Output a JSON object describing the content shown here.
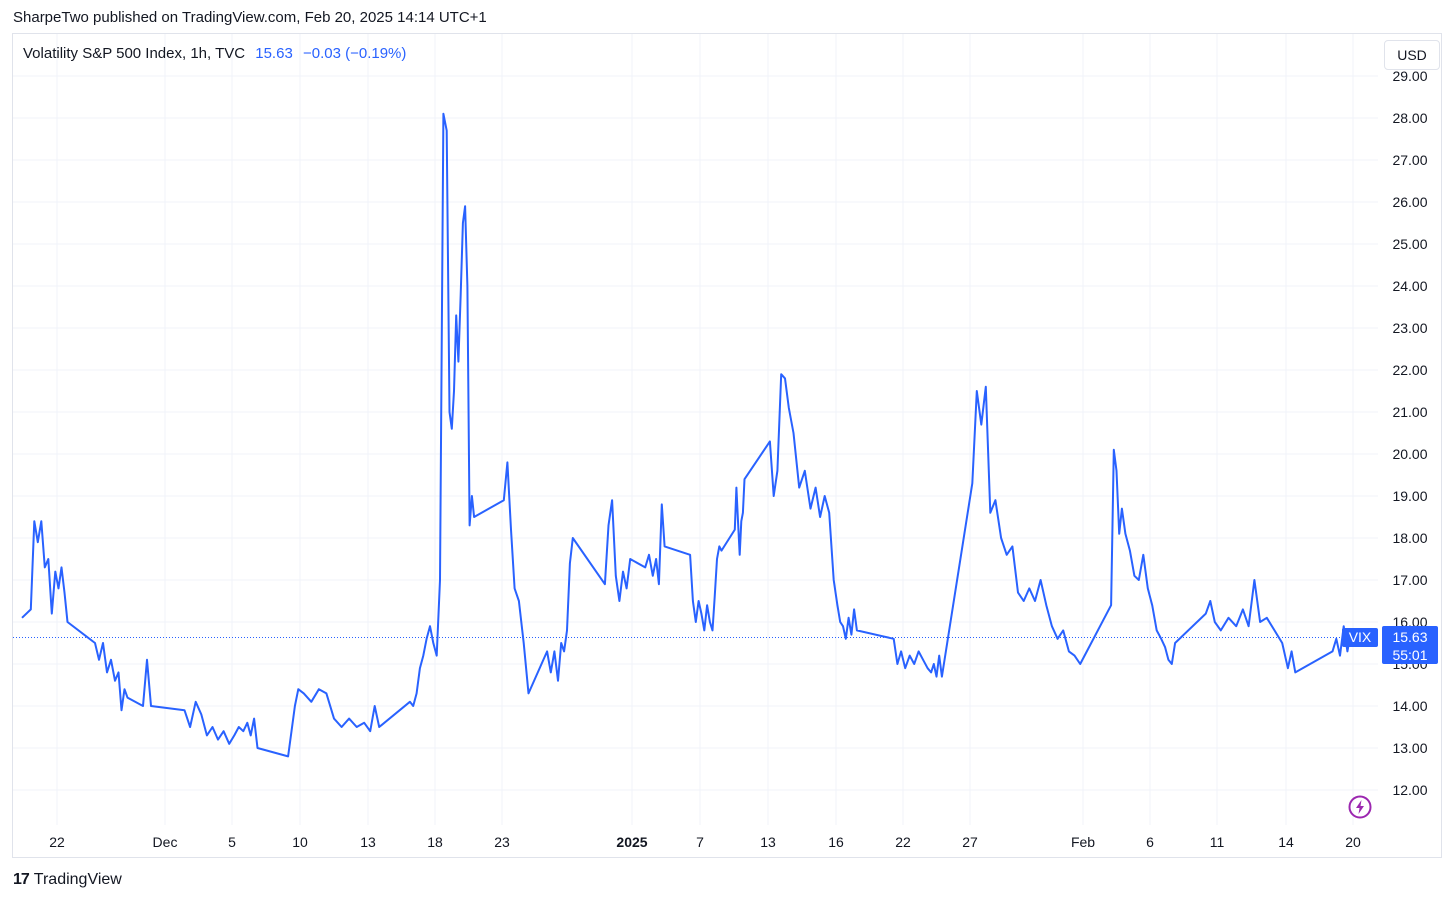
{
  "header": {
    "published_by": "SharpeTwo published on TradingView.com, Feb 20, 2025 14:14 UTC+1"
  },
  "legend": {
    "symbol": "Volatility S&P 500 Index, 1h, TVC",
    "last": "15.63",
    "change": "−0.03 (−0.19%)"
  },
  "currency_button": "USD",
  "price_tag": {
    "ticker": "VIX",
    "price": "15.63",
    "countdown": "55:01"
  },
  "footer": {
    "brand": "TradingView",
    "logo_text": "17"
  },
  "colors": {
    "line": "#2962ff",
    "grid": "#f0f3fa",
    "text": "#131722"
  },
  "icons": {
    "bolt": "lightning-bolt-icon"
  },
  "chart_data": {
    "type": "line",
    "title": "Volatility S&P 500 Index, 1h, TVC",
    "xlabel": "",
    "ylabel": "",
    "ylim": [
      11.4,
      29.2
    ],
    "y_ticks": [
      "12.00",
      "13.00",
      "14.00",
      "15.00",
      "16.00",
      "17.00",
      "18.00",
      "19.00",
      "20.00",
      "21.00",
      "22.00",
      "23.00",
      "24.00",
      "25.00",
      "26.00",
      "27.00",
      "28.00",
      "29.00"
    ],
    "x_ticks": [
      {
        "label": "22",
        "date": "2024-11-22",
        "bold": false
      },
      {
        "label": "Dec",
        "date": "2024-12-01",
        "bold": false
      },
      {
        "label": "5",
        "date": "2024-12-05",
        "bold": false
      },
      {
        "label": "10",
        "date": "2024-12-10",
        "bold": false
      },
      {
        "label": "13",
        "date": "2024-12-13",
        "bold": false
      },
      {
        "label": "18",
        "date": "2024-12-18",
        "bold": false
      },
      {
        "label": "23",
        "date": "2024-12-23",
        "bold": false
      },
      {
        "label": "2025",
        "date": "2025-01-01",
        "bold": true
      },
      {
        "label": "7",
        "date": "2025-01-07",
        "bold": false
      },
      {
        "label": "13",
        "date": "2025-01-13",
        "bold": false
      },
      {
        "label": "16",
        "date": "2025-01-16",
        "bold": false
      },
      {
        "label": "22",
        "date": "2025-01-22",
        "bold": false
      },
      {
        "label": "27",
        "date": "2025-01-27",
        "bold": false
      },
      {
        "label": "Feb",
        "date": "2025-02-01",
        "bold": false
      },
      {
        "label": "6",
        "date": "2025-02-06",
        "bold": false
      },
      {
        "label": "11",
        "date": "2025-02-11",
        "bold": false
      },
      {
        "label": "14",
        "date": "2025-02-14",
        "bold": false
      },
      {
        "label": "20",
        "date": "2025-02-20",
        "bold": false
      }
    ],
    "last_price_line": 15.63,
    "series": [
      {
        "values": [
          [
            "2024-11-19",
            16.1
          ],
          [
            "2024-11-20",
            16.3
          ],
          [
            "2024-11-20",
            18.4
          ],
          [
            "2024-11-20",
            17.9
          ],
          [
            "2024-11-20",
            18.4
          ],
          [
            "2024-11-21",
            17.3
          ],
          [
            "2024-11-21",
            17.5
          ],
          [
            "2024-11-21",
            16.2
          ],
          [
            "2024-11-21",
            17.2
          ],
          [
            "2024-11-22",
            16.8
          ],
          [
            "2024-11-22",
            17.3
          ],
          [
            "2024-11-22",
            16.7
          ],
          [
            "2024-11-22",
            16.0
          ],
          [
            "2024-11-25",
            15.5
          ],
          [
            "2024-11-25",
            15.1
          ],
          [
            "2024-11-25",
            15.5
          ],
          [
            "2024-11-26",
            14.8
          ],
          [
            "2024-11-26",
            15.1
          ],
          [
            "2024-11-26",
            14.6
          ],
          [
            "2024-11-27",
            14.8
          ],
          [
            "2024-11-27",
            13.9
          ],
          [
            "2024-11-27",
            14.4
          ],
          [
            "2024-11-27",
            14.2
          ],
          [
            "2024-11-29",
            14.0
          ],
          [
            "2024-11-29",
            15.1
          ],
          [
            "2024-11-29",
            14.0
          ],
          [
            "2024-12-02",
            13.9
          ],
          [
            "2024-12-02",
            13.5
          ],
          [
            "2024-12-02",
            14.1
          ],
          [
            "2024-12-03",
            13.8
          ],
          [
            "2024-12-03",
            13.3
          ],
          [
            "2024-12-03",
            13.5
          ],
          [
            "2024-12-04",
            13.2
          ],
          [
            "2024-12-04",
            13.4
          ],
          [
            "2024-12-04",
            13.1
          ],
          [
            "2024-12-05",
            13.3
          ],
          [
            "2024-12-05",
            13.5
          ],
          [
            "2024-12-05",
            13.4
          ],
          [
            "2024-12-06",
            13.6
          ],
          [
            "2024-12-06",
            13.3
          ],
          [
            "2024-12-06",
            13.7
          ],
          [
            "2024-12-06",
            13.0
          ],
          [
            "2024-12-09",
            12.8
          ],
          [
            "2024-12-09",
            13.4
          ],
          [
            "2024-12-09",
            14.0
          ],
          [
            "2024-12-09",
            14.4
          ],
          [
            "2024-12-10",
            14.3
          ],
          [
            "2024-12-10",
            14.1
          ],
          [
            "2024-12-10",
            14.4
          ],
          [
            "2024-12-11",
            14.3
          ],
          [
            "2024-12-11",
            13.7
          ],
          [
            "2024-12-11",
            13.5
          ],
          [
            "2024-12-12",
            13.7
          ],
          [
            "2024-12-12",
            13.5
          ],
          [
            "2024-12-12",
            13.6
          ],
          [
            "2024-12-13",
            13.4
          ],
          [
            "2024-12-13",
            14.0
          ],
          [
            "2024-12-13",
            13.5
          ],
          [
            "2024-12-16",
            14.1
          ],
          [
            "2024-12-16",
            14.0
          ],
          [
            "2024-12-16",
            14.3
          ],
          [
            "2024-12-16",
            14.9
          ],
          [
            "2024-12-17",
            15.2
          ],
          [
            "2024-12-17",
            15.6
          ],
          [
            "2024-12-17",
            15.9
          ],
          [
            "2024-12-17",
            15.5
          ],
          [
            "2024-12-18",
            15.2
          ],
          [
            "2024-12-18",
            17.0
          ],
          [
            "2024-12-18",
            28.1
          ],
          [
            "2024-12-18",
            27.7
          ],
          [
            "2024-12-19",
            21.0
          ],
          [
            "2024-12-19",
            20.6
          ],
          [
            "2024-12-19",
            21.5
          ],
          [
            "2024-12-19",
            23.3
          ],
          [
            "2024-12-19",
            22.2
          ],
          [
            "2024-12-19",
            23.8
          ],
          [
            "2024-12-20",
            25.5
          ],
          [
            "2024-12-20",
            25.9
          ],
          [
            "2024-12-20",
            24.0
          ],
          [
            "2024-12-20",
            18.3
          ],
          [
            "2024-12-20",
            19.0
          ],
          [
            "2024-12-20",
            18.5
          ],
          [
            "2024-12-23",
            18.9
          ],
          [
            "2024-12-23",
            19.8
          ],
          [
            "2024-12-23",
            18.2
          ],
          [
            "2024-12-23",
            16.8
          ],
          [
            "2024-12-24",
            16.5
          ],
          [
            "2024-12-24",
            15.5
          ],
          [
            "2024-12-24",
            14.3
          ],
          [
            "2024-12-26",
            15.3
          ],
          [
            "2024-12-26",
            14.8
          ],
          [
            "2024-12-26",
            15.3
          ],
          [
            "2024-12-26",
            14.6
          ],
          [
            "2024-12-27",
            15.5
          ],
          [
            "2024-12-27",
            15.3
          ],
          [
            "2024-12-27",
            15.8
          ],
          [
            "2024-12-27",
            17.4
          ],
          [
            "2024-12-27",
            18.0
          ],
          [
            "2024-12-30",
            16.9
          ],
          [
            "2024-12-30",
            18.3
          ],
          [
            "2024-12-30",
            18.9
          ],
          [
            "2024-12-30",
            17.1
          ],
          [
            "2024-12-31",
            16.5
          ],
          [
            "2024-12-31",
            17.2
          ],
          [
            "2024-12-31",
            16.8
          ],
          [
            "2024-12-31",
            17.5
          ],
          [
            "2025-01-02",
            17.3
          ],
          [
            "2025-01-02",
            17.6
          ],
          [
            "2025-01-02",
            17.1
          ],
          [
            "2025-01-03",
            17.5
          ],
          [
            "2025-01-03",
            16.9
          ],
          [
            "2025-01-03",
            18.8
          ],
          [
            "2025-01-03",
            17.8
          ],
          [
            "2025-01-06",
            17.6
          ],
          [
            "2025-01-06",
            16.5
          ],
          [
            "2025-01-06",
            16.0
          ],
          [
            "2025-01-06",
            16.5
          ],
          [
            "2025-01-07",
            16.2
          ],
          [
            "2025-01-07",
            15.8
          ],
          [
            "2025-01-07",
            16.4
          ],
          [
            "2025-01-07",
            16.0
          ],
          [
            "2025-01-08",
            15.8
          ],
          [
            "2025-01-08",
            16.6
          ],
          [
            "2025-01-08",
            17.5
          ],
          [
            "2025-01-08",
            17.8
          ],
          [
            "2025-01-08",
            17.7
          ],
          [
            "2025-01-10",
            18.2
          ],
          [
            "2025-01-10",
            19.2
          ],
          [
            "2025-01-10",
            18.4
          ],
          [
            "2025-01-10",
            17.6
          ],
          [
            "2025-01-10",
            18.4
          ],
          [
            "2025-01-10",
            18.6
          ],
          [
            "2025-01-10",
            19.4
          ],
          [
            "2025-01-13",
            20.3
          ],
          [
            "2025-01-13",
            19.0
          ],
          [
            "2025-01-13",
            19.6
          ],
          [
            "2025-01-13",
            21.9
          ],
          [
            "2025-01-13",
            21.8
          ],
          [
            "2025-01-13",
            21.1
          ],
          [
            "2025-01-14",
            20.5
          ],
          [
            "2025-01-14",
            19.2
          ],
          [
            "2025-01-14",
            19.6
          ],
          [
            "2025-01-14",
            18.7
          ],
          [
            "2025-01-15",
            19.2
          ],
          [
            "2025-01-15",
            18.5
          ],
          [
            "2025-01-15",
            19.0
          ],
          [
            "2025-01-15",
            18.6
          ],
          [
            "2025-01-15",
            17.0
          ],
          [
            "2025-01-16",
            16.4
          ],
          [
            "2025-01-16",
            16.0
          ],
          [
            "2025-01-16",
            15.9
          ],
          [
            "2025-01-16",
            15.6
          ],
          [
            "2025-01-17",
            16.1
          ],
          [
            "2025-01-17",
            15.7
          ],
          [
            "2025-01-17",
            16.3
          ],
          [
            "2025-01-17",
            15.8
          ],
          [
            "2025-01-21",
            15.6
          ],
          [
            "2025-01-21",
            15.0
          ],
          [
            "2025-01-21",
            15.3
          ],
          [
            "2025-01-22",
            14.9
          ],
          [
            "2025-01-22",
            15.2
          ],
          [
            "2025-01-22",
            15.0
          ],
          [
            "2025-01-23",
            15.3
          ],
          [
            "2025-01-23",
            15.1
          ],
          [
            "2025-01-23",
            14.9
          ],
          [
            "2025-01-24",
            14.8
          ],
          [
            "2025-01-24",
            15.0
          ],
          [
            "2025-01-24",
            14.7
          ],
          [
            "2025-01-24",
            15.2
          ],
          [
            "2025-01-24",
            14.7
          ],
          [
            "2025-01-27",
            19.3
          ],
          [
            "2025-01-27",
            21.5
          ],
          [
            "2025-01-27",
            20.7
          ],
          [
            "2025-01-27",
            21.6
          ],
          [
            "2025-01-27",
            18.6
          ],
          [
            "2025-01-28",
            18.9
          ],
          [
            "2025-01-28",
            18.0
          ],
          [
            "2025-01-28",
            17.6
          ],
          [
            "2025-01-28",
            17.8
          ],
          [
            "2025-01-29",
            16.7
          ],
          [
            "2025-01-29",
            16.5
          ],
          [
            "2025-01-29",
            16.8
          ],
          [
            "2025-01-29",
            16.5
          ],
          [
            "2025-01-30",
            17.0
          ],
          [
            "2025-01-30",
            16.4
          ],
          [
            "2025-01-30",
            15.9
          ],
          [
            "2025-01-30",
            15.6
          ],
          [
            "2025-01-31",
            15.8
          ],
          [
            "2025-01-31",
            15.3
          ],
          [
            "2025-01-31",
            15.2
          ],
          [
            "2025-01-31",
            15.0
          ],
          [
            "2025-02-03",
            16.4
          ],
          [
            "2025-02-03",
            20.1
          ],
          [
            "2025-02-03",
            19.6
          ],
          [
            "2025-02-03",
            18.1
          ],
          [
            "2025-02-03",
            18.7
          ],
          [
            "2025-02-04",
            18.1
          ],
          [
            "2025-02-04",
            17.7
          ],
          [
            "2025-02-04",
            17.1
          ],
          [
            "2025-02-05",
            17.0
          ],
          [
            "2025-02-05",
            17.6
          ],
          [
            "2025-02-05",
            16.8
          ],
          [
            "2025-02-06",
            16.4
          ],
          [
            "2025-02-06",
            15.8
          ],
          [
            "2025-02-06",
            15.6
          ],
          [
            "2025-02-07",
            15.4
          ],
          [
            "2025-02-07",
            15.1
          ],
          [
            "2025-02-07",
            15.0
          ],
          [
            "2025-02-07",
            15.5
          ],
          [
            "2025-02-10",
            16.2
          ],
          [
            "2025-02-10",
            16.5
          ],
          [
            "2025-02-10",
            16.0
          ],
          [
            "2025-02-11",
            15.8
          ],
          [
            "2025-02-11",
            16.1
          ],
          [
            "2025-02-11",
            15.9
          ],
          [
            "2025-02-12",
            16.3
          ],
          [
            "2025-02-12",
            15.9
          ],
          [
            "2025-02-12",
            17.0
          ],
          [
            "2025-02-12",
            16.0
          ],
          [
            "2025-02-13",
            16.1
          ],
          [
            "2025-02-13",
            15.8
          ],
          [
            "2025-02-13",
            15.5
          ],
          [
            "2025-02-14",
            14.9
          ],
          [
            "2025-02-14",
            15.3
          ],
          [
            "2025-02-14",
            14.8
          ],
          [
            "2025-02-18",
            15.3
          ],
          [
            "2025-02-18",
            15.6
          ],
          [
            "2025-02-18",
            15.2
          ],
          [
            "2025-02-19",
            15.9
          ],
          [
            "2025-02-19",
            15.3
          ],
          [
            "2025-02-19",
            15.8
          ],
          [
            "2025-02-20",
            15.7
          ],
          [
            "2025-02-20",
            15.63
          ]
        ]
      }
    ]
  }
}
